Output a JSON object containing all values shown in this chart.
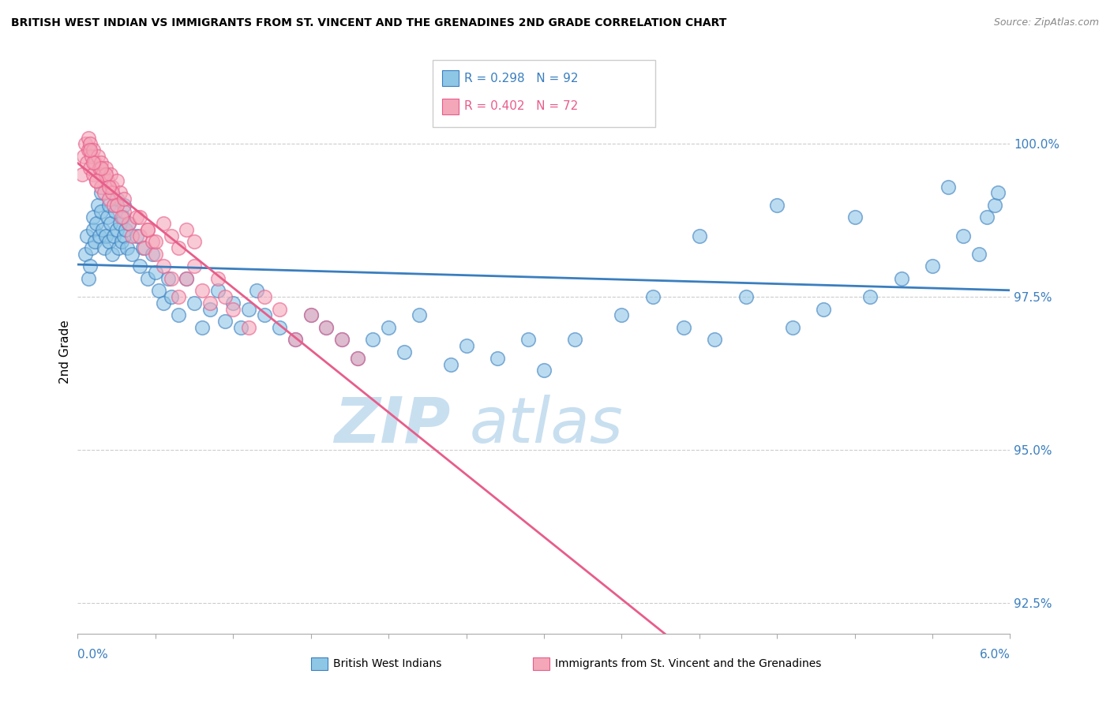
{
  "title": "BRITISH WEST INDIAN VS IMMIGRANTS FROM ST. VINCENT AND THE GRENADINES 2ND GRADE CORRELATION CHART",
  "source": "Source: ZipAtlas.com",
  "ylabel": "2nd Grade",
  "xlim": [
    0.0,
    6.0
  ],
  "ylim": [
    92.0,
    101.2
  ],
  "yticks": [
    92.5,
    95.0,
    97.5,
    100.0
  ],
  "ytick_labels": [
    "92.5%",
    "95.0%",
    "97.5%",
    "100.0%"
  ],
  "legend_blue_label": "British West Indians",
  "legend_pink_label": "Immigrants from St. Vincent and the Grenadines",
  "blue_R": 0.298,
  "blue_N": 92,
  "pink_R": 0.402,
  "pink_N": 72,
  "blue_color": "#8ec6e6",
  "pink_color": "#f4a7b9",
  "blue_line_color": "#3a7ebf",
  "pink_line_color": "#e85d8a",
  "watermark_color": "#c8dff0",
  "blue_scatter_x": [
    0.05,
    0.06,
    0.07,
    0.08,
    0.09,
    0.1,
    0.1,
    0.11,
    0.12,
    0.13,
    0.14,
    0.15,
    0.15,
    0.16,
    0.17,
    0.18,
    0.19,
    0.2,
    0.2,
    0.21,
    0.22,
    0.23,
    0.24,
    0.25,
    0.25,
    0.26,
    0.27,
    0.28,
    0.29,
    0.3,
    0.3,
    0.31,
    0.32,
    0.33,
    0.35,
    0.38,
    0.4,
    0.42,
    0.45,
    0.48,
    0.5,
    0.52,
    0.55,
    0.58,
    0.6,
    0.65,
    0.7,
    0.75,
    0.8,
    0.85,
    0.9,
    0.95,
    1.0,
    1.05,
    1.1,
    1.15,
    1.2,
    1.3,
    1.4,
    1.5,
    1.6,
    1.7,
    1.8,
    1.9,
    2.0,
    2.1,
    2.2,
    2.4,
    2.5,
    2.7,
    2.9,
    3.0,
    3.2,
    3.5,
    3.7,
    3.9,
    4.1,
    4.3,
    4.6,
    4.8,
    5.1,
    5.3,
    5.5,
    5.7,
    5.8,
    5.85,
    5.9,
    5.92,
    4.0,
    4.5,
    5.0,
    5.6
  ],
  "blue_scatter_y": [
    98.2,
    98.5,
    97.8,
    98.0,
    98.3,
    98.6,
    98.8,
    98.4,
    98.7,
    99.0,
    98.5,
    98.9,
    99.2,
    98.6,
    98.3,
    98.5,
    98.8,
    98.4,
    99.0,
    98.7,
    98.2,
    98.5,
    98.9,
    98.6,
    99.1,
    98.3,
    98.7,
    98.4,
    98.8,
    98.5,
    99.0,
    98.6,
    98.3,
    98.7,
    98.2,
    98.5,
    98.0,
    98.3,
    97.8,
    98.2,
    97.9,
    97.6,
    97.4,
    97.8,
    97.5,
    97.2,
    97.8,
    97.4,
    97.0,
    97.3,
    97.6,
    97.1,
    97.4,
    97.0,
    97.3,
    97.6,
    97.2,
    97.0,
    96.8,
    97.2,
    97.0,
    96.8,
    96.5,
    96.8,
    97.0,
    96.6,
    97.2,
    96.4,
    96.7,
    96.5,
    96.8,
    96.3,
    96.8,
    97.2,
    97.5,
    97.0,
    96.8,
    97.5,
    97.0,
    97.3,
    97.5,
    97.8,
    98.0,
    98.5,
    98.2,
    98.8,
    99.0,
    99.2,
    98.5,
    99.0,
    98.8,
    99.3
  ],
  "pink_scatter_x": [
    0.03,
    0.04,
    0.05,
    0.06,
    0.07,
    0.07,
    0.08,
    0.08,
    0.09,
    0.1,
    0.1,
    0.11,
    0.12,
    0.13,
    0.14,
    0.15,
    0.15,
    0.16,
    0.17,
    0.18,
    0.19,
    0.2,
    0.21,
    0.22,
    0.23,
    0.25,
    0.27,
    0.3,
    0.33,
    0.35,
    0.38,
    0.4,
    0.43,
    0.45,
    0.48,
    0.5,
    0.55,
    0.6,
    0.65,
    0.7,
    0.75,
    0.8,
    0.85,
    0.9,
    0.95,
    1.0,
    1.1,
    1.2,
    1.3,
    1.4,
    1.5,
    1.6,
    1.7,
    1.8,
    0.4,
    0.45,
    0.5,
    0.55,
    0.6,
    0.65,
    0.7,
    0.75,
    0.22,
    0.25,
    0.28,
    0.3,
    0.18,
    0.2,
    0.15,
    0.12,
    0.1,
    0.08
  ],
  "pink_scatter_y": [
    99.5,
    99.8,
    100.0,
    99.7,
    99.9,
    100.1,
    99.6,
    100.0,
    99.8,
    99.5,
    99.9,
    99.7,
    99.4,
    99.8,
    99.6,
    99.3,
    99.7,
    99.5,
    99.2,
    99.6,
    99.4,
    99.1,
    99.5,
    99.3,
    99.0,
    99.4,
    99.2,
    98.9,
    98.7,
    98.5,
    98.8,
    98.5,
    98.3,
    98.6,
    98.4,
    98.2,
    98.0,
    97.8,
    97.5,
    97.8,
    98.0,
    97.6,
    97.4,
    97.8,
    97.5,
    97.3,
    97.0,
    97.5,
    97.3,
    96.8,
    97.2,
    97.0,
    96.8,
    96.5,
    98.8,
    98.6,
    98.4,
    98.7,
    98.5,
    98.3,
    98.6,
    98.4,
    99.2,
    99.0,
    98.8,
    99.1,
    99.5,
    99.3,
    99.6,
    99.4,
    99.7,
    99.9
  ]
}
